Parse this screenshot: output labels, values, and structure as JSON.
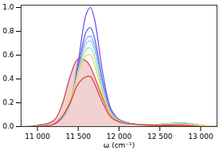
{
  "chart_data": {
    "type": "line",
    "x_label": "ω (cm⁻¹)",
    "x": [
      10800,
      11000,
      11200,
      11300,
      11400,
      11500,
      11600,
      11650,
      11700,
      11800,
      11900,
      12000,
      12200,
      12500,
      12800,
      13000,
      13200
    ],
    "series": [
      {
        "type": "area",
        "color": "#c84848",
        "values": [
          0,
          0.01,
          0.05,
          0.18,
          0.42,
          0.57,
          0.55,
          0.5,
          0.42,
          0.24,
          0.1,
          0.04,
          0.02,
          0.01,
          0.01,
          0,
          0
        ]
      },
      {
        "color": "#7b3fe4",
        "values": [
          0,
          0,
          0.02,
          0.07,
          0.2,
          0.55,
          0.95,
          1.0,
          0.9,
          0.45,
          0.15,
          0.06,
          0.02,
          0.01,
          0.02,
          0.01,
          0
        ]
      },
      {
        "color": "#4a5ce8",
        "values": [
          0,
          0,
          0.02,
          0.07,
          0.2,
          0.5,
          0.8,
          0.83,
          0.74,
          0.38,
          0.13,
          0.05,
          0.02,
          0.02,
          0.03,
          0.01,
          0
        ]
      },
      {
        "color": "#7aa0f0",
        "values": [
          0,
          0,
          0.02,
          0.07,
          0.2,
          0.48,
          0.74,
          0.76,
          0.68,
          0.35,
          0.12,
          0.05,
          0.02,
          0.02,
          0.03,
          0.01,
          0
        ]
      },
      {
        "color": "#8ad0e8",
        "values": [
          0,
          0,
          0.02,
          0.07,
          0.2,
          0.47,
          0.7,
          0.72,
          0.64,
          0.33,
          0.12,
          0.05,
          0.02,
          0.02,
          0.03,
          0.01,
          0
        ]
      },
      {
        "color": "#a0e0a0",
        "values": [
          0,
          0,
          0.02,
          0.08,
          0.21,
          0.46,
          0.65,
          0.66,
          0.58,
          0.3,
          0.11,
          0.05,
          0.02,
          0.02,
          0.03,
          0.01,
          0
        ]
      },
      {
        "color": "#e8d850",
        "values": [
          0,
          0,
          0.02,
          0.08,
          0.22,
          0.45,
          0.6,
          0.6,
          0.52,
          0.27,
          0.1,
          0.04,
          0.02,
          0.02,
          0.02,
          0.01,
          0
        ]
      },
      {
        "color": "#e03030",
        "values": [
          0,
          0,
          0.02,
          0.08,
          0.2,
          0.36,
          0.42,
          0.42,
          0.36,
          0.2,
          0.08,
          0.04,
          0.02,
          0.01,
          0.01,
          0,
          0
        ]
      }
    ],
    "xlim": [
      10800,
      13200
    ],
    "xticks": [
      {
        "value": 11000,
        "label": "11 000"
      },
      {
        "value": 11500,
        "label": "11 500"
      },
      {
        "value": 12000,
        "label": "12 000"
      },
      {
        "value": 12500,
        "label": "12 500"
      },
      {
        "value": 13000,
        "label": "13 000"
      }
    ],
    "ylim": [
      0,
      1.02
    ],
    "yticks": [
      {
        "value": 0,
        "label": "0.0"
      },
      {
        "value": 0.2,
        "label": "0.2"
      },
      {
        "value": 0.4,
        "label": "0.4"
      },
      {
        "value": 0.6,
        "label": "0.6"
      },
      {
        "value": 0.8,
        "label": "0.8"
      },
      {
        "value": 1.0,
        "label": "1.0"
      }
    ],
    "grid": false
  }
}
